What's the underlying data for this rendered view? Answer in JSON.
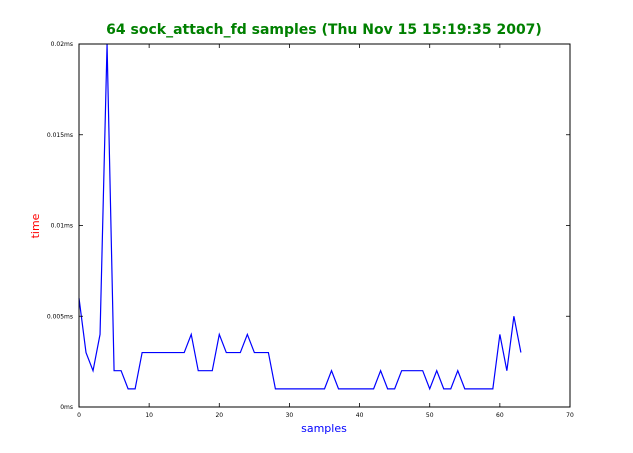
{
  "chart_data": {
    "type": "line",
    "title": "64 sock_attach_fd samples (Thu Nov 15 15:19:35 2007)",
    "xlabel": "samples",
    "ylabel": "time",
    "xlim": [
      0,
      70
    ],
    "ylim": [
      0,
      0.02
    ],
    "x_ticks": [
      0,
      10,
      20,
      30,
      40,
      50,
      60,
      70
    ],
    "x_tick_labels": [
      "0",
      "10",
      "20",
      "30",
      "40",
      "50",
      "60",
      "70"
    ],
    "y_ticks": [
      0,
      0.005,
      0.01,
      0.015,
      0.02
    ],
    "y_tick_labels": [
      "0ms",
      "0.005ms",
      "0.01ms",
      "0.015ms",
      "0.02ms"
    ],
    "grid": false,
    "legend": "none",
    "series": [
      {
        "x": [
          0,
          1,
          2,
          3,
          4,
          5,
          6,
          7,
          8,
          9,
          10,
          11,
          12,
          13,
          14,
          15,
          16,
          17,
          18,
          19,
          20,
          21,
          22,
          23,
          24,
          25,
          26,
          27,
          28,
          29,
          30,
          31,
          32,
          33,
          34,
          35,
          36,
          37,
          38,
          39,
          40,
          41,
          42,
          43,
          44,
          45,
          46,
          47,
          48,
          49,
          50,
          51,
          52,
          53,
          54,
          55,
          56,
          57,
          58,
          59,
          60,
          61,
          62,
          63
        ],
        "values": [
          0.006,
          0.003,
          0.002,
          0.004,
          0.02,
          0.002,
          0.002,
          0.001,
          0.001,
          0.003,
          0.003,
          0.003,
          0.003,
          0.003,
          0.003,
          0.003,
          0.004,
          0.002,
          0.002,
          0.002,
          0.004,
          0.003,
          0.003,
          0.003,
          0.004,
          0.003,
          0.003,
          0.003,
          0.001,
          0.001,
          0.001,
          0.001,
          0.001,
          0.001,
          0.001,
          0.001,
          0.002,
          0.001,
          0.001,
          0.001,
          0.001,
          0.001,
          0.001,
          0.002,
          0.001,
          0.001,
          0.002,
          0.002,
          0.002,
          0.002,
          0.001,
          0.002,
          0.001,
          0.001,
          0.002,
          0.001,
          0.001,
          0.001,
          0.001,
          0.001,
          0.004,
          0.002,
          0.005,
          0.003
        ]
      }
    ],
    "colors": {
      "title": "#008000",
      "ylabel": "#ff0000",
      "xlabel": "#0000ff",
      "line": "#0000ff",
      "axes": "#000000"
    }
  }
}
